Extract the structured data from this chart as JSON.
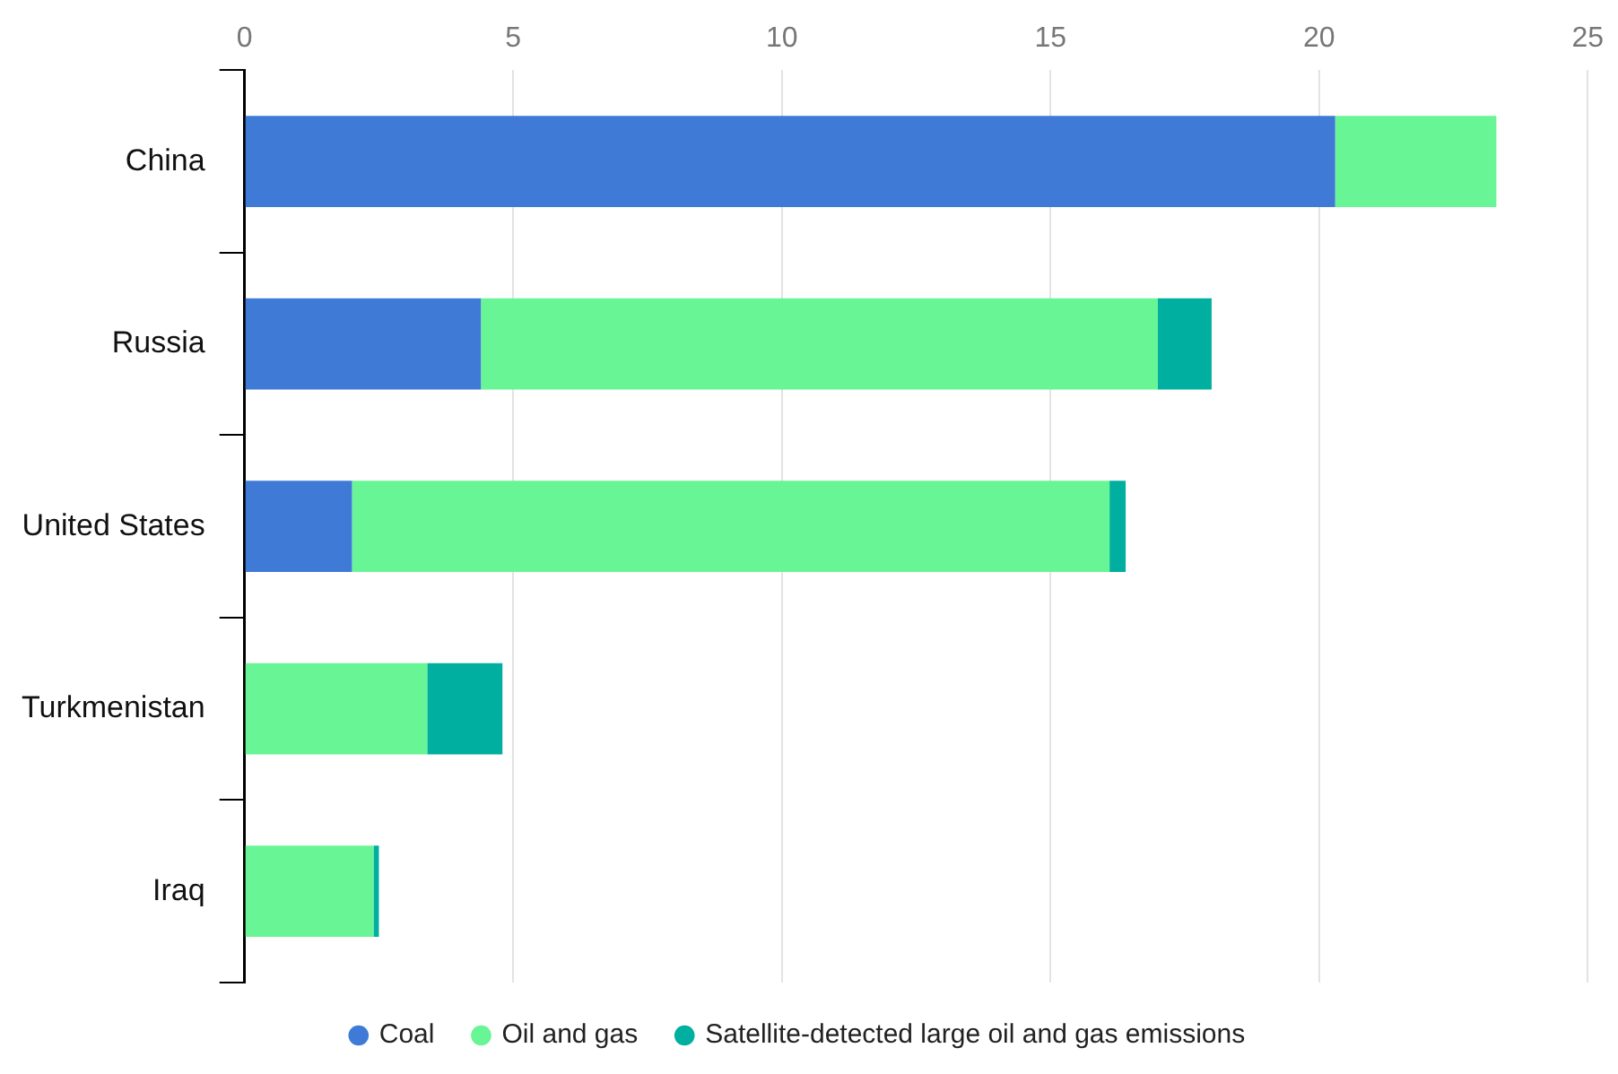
{
  "chart_data": {
    "type": "bar",
    "orientation": "horizontal",
    "stacked": true,
    "categories": [
      "China",
      "Russia",
      "United States",
      "Turkmenistan",
      "Iraq"
    ],
    "series": [
      {
        "name": "Coal",
        "color": "#3f7bd6",
        "values": [
          20.3,
          4.4,
          2.0,
          null,
          null
        ]
      },
      {
        "name": "Oil and gas",
        "color": "#68f595",
        "values": [
          3.0,
          12.6,
          14.1,
          3.4,
          2.4
        ]
      },
      {
        "name": "Satellite-detected large oil and gas emissions",
        "color": "#00afa0",
        "values": [
          null,
          1.0,
          0.3,
          1.4,
          0.1
        ]
      }
    ],
    "xlim": [
      0,
      25
    ],
    "xticks": [
      0,
      5,
      10,
      15,
      20,
      25
    ],
    "grid": "x",
    "legend": "bottom",
    "marker": "circle"
  }
}
